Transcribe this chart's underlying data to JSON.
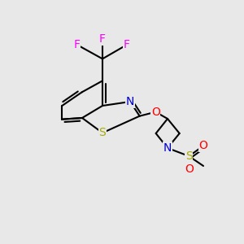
{
  "bg_color": "#e8e8e8",
  "bond_color": "#000000",
  "bond_lw": 1.5,
  "atom_colors": {
    "F": "#ff00ff",
    "N": "#0000cc",
    "O": "#ff0000",
    "S_thio": "#aaaa00",
    "S_sulf": "#aaaa00",
    "C": "#000000"
  },
  "font_size": 10,
  "font_size_small": 9
}
